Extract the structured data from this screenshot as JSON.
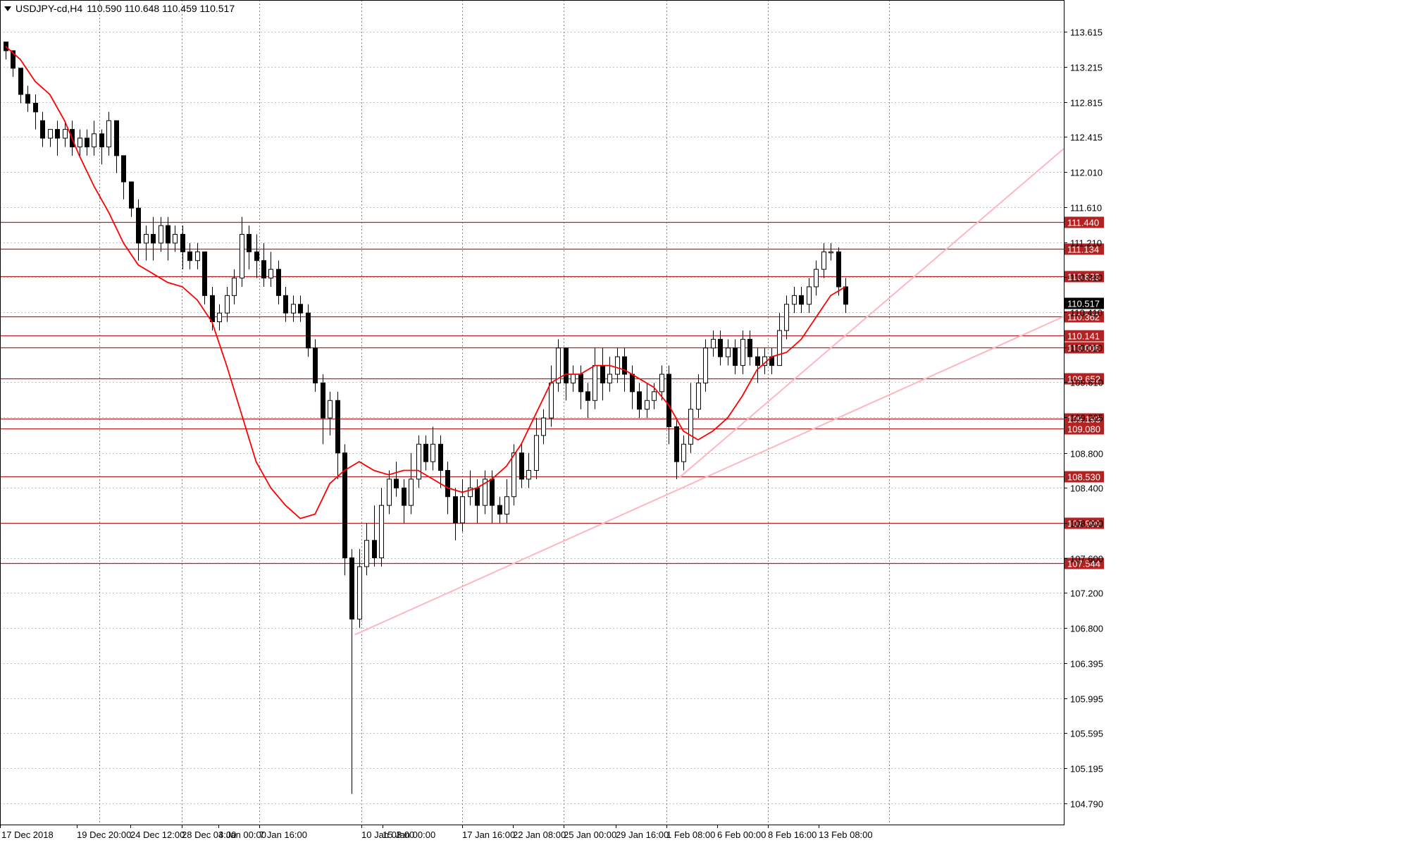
{
  "header": {
    "symbol": "USDJPY-cd,H4",
    "quote": "110.590 110.648 110.459 110.517"
  },
  "colors": {
    "candle_bull": "#ffffff",
    "candle_bear": "#000000",
    "ma_line": "#ff0000",
    "level_line": "#b22222",
    "trend_line": "#ffb6c1",
    "grid": "#c0c0c0",
    "price_tag_bg": "#b22222",
    "current_tag_bg": "#000000"
  },
  "chart_data": {
    "type": "candlestick",
    "title": "USDJPY-cd,H4",
    "ohlc": [
      110.59,
      110.648,
      110.459,
      110.517
    ],
    "grid": true,
    "ylim": [
      104.55,
      113.98
    ],
    "y_ticks": [
      "113.615",
      "113.215",
      "112.815",
      "112.415",
      "112.010",
      "111.610",
      "111.210",
      "110.810",
      "110.410",
      "110.010",
      "109.610",
      "109.205",
      "108.800",
      "108.400",
      "108.000",
      "107.600",
      "107.200",
      "106.800",
      "106.395",
      "105.995",
      "105.595",
      "105.195",
      "104.790"
    ],
    "x_ticks": [
      "17 Dec 2018",
      "19 Dec 20:00",
      "24 Dec 12:00",
      "28 Dec 04:00",
      "3 Jan 00:00",
      "7 Jan 16:00",
      "10 Jan 08:00",
      "15 Jan 00:00",
      "17 Jan 16:00",
      "22 Jan 08:00",
      "25 Jan 00:00",
      "29 Jan 16:00",
      "1 Feb 08:00",
      "6 Feb 00:00",
      "8 Feb 16:00",
      "13 Feb 08:00"
    ],
    "price_levels": [
      111.44,
      111.134,
      110.823,
      110.362,
      110.141,
      110.008,
      109.652,
      109.193,
      109.08,
      108.53,
      107.999,
      107.544
    ],
    "current_price": 110.517,
    "moving_average": [
      113.45,
      113.3,
      113.05,
      112.9,
      112.6,
      112.2,
      111.85,
      111.55,
      111.2,
      110.95,
      110.85,
      110.75,
      110.7,
      110.55,
      110.3,
      109.8,
      109.25,
      108.7,
      108.4,
      108.2,
      108.05,
      108.1,
      108.45,
      108.6,
      108.7,
      108.6,
      108.55,
      108.6,
      108.6,
      108.5,
      108.4,
      108.35,
      108.4,
      108.5,
      108.65,
      108.9,
      109.25,
      109.6,
      109.7,
      109.7,
      109.8,
      109.8,
      109.75,
      109.65,
      109.55,
      109.35,
      109.05,
      108.95,
      109.05,
      109.2,
      109.45,
      109.75,
      109.9,
      109.95,
      110.1,
      110.35,
      110.6,
      110.7
    ],
    "candles": [
      [
        113.5,
        113.4,
        113.5,
        113.3
      ],
      [
        113.4,
        113.2,
        113.4,
        113.1
      ],
      [
        113.2,
        112.9,
        113.2,
        112.8
      ],
      [
        112.9,
        112.8,
        113.0,
        112.7
      ],
      [
        112.8,
        112.7,
        112.9,
        112.5
      ],
      [
        112.6,
        112.4,
        112.7,
        112.3
      ],
      [
        112.4,
        112.5,
        112.5,
        112.3
      ],
      [
        112.5,
        112.4,
        112.6,
        112.2
      ],
      [
        112.4,
        112.5,
        112.6,
        112.3
      ],
      [
        112.5,
        112.3,
        112.6,
        112.2
      ],
      [
        112.3,
        112.4,
        112.5,
        112.2
      ],
      [
        112.4,
        112.3,
        112.5,
        112.2
      ],
      [
        112.3,
        112.45,
        112.6,
        112.2
      ],
      [
        112.45,
        112.3,
        112.5,
        112.1
      ],
      [
        112.3,
        112.6,
        112.7,
        112.2
      ],
      [
        112.6,
        112.2,
        112.6,
        112.0
      ],
      [
        112.2,
        111.9,
        112.2,
        111.7
      ],
      [
        111.9,
        111.6,
        111.9,
        111.5
      ],
      [
        111.6,
        111.2,
        111.7,
        111.0
      ],
      [
        111.2,
        111.3,
        111.4,
        111.0
      ],
      [
        111.3,
        111.2,
        111.5,
        111.0
      ],
      [
        111.2,
        111.4,
        111.5,
        111.1
      ],
      [
        111.4,
        111.2,
        111.5,
        111.0
      ],
      [
        111.2,
        111.3,
        111.4,
        111.1
      ],
      [
        111.3,
        111.1,
        111.4,
        110.9
      ],
      [
        111.1,
        111.0,
        111.2,
        110.9
      ],
      [
        111.0,
        111.1,
        111.2,
        110.9
      ],
      [
        111.1,
        110.6,
        111.1,
        110.5
      ],
      [
        110.6,
        110.3,
        110.7,
        110.2
      ],
      [
        110.3,
        110.4,
        110.5,
        110.2
      ],
      [
        110.4,
        110.6,
        110.7,
        110.3
      ],
      [
        110.6,
        110.8,
        110.9,
        110.5
      ],
      [
        110.8,
        111.3,
        111.5,
        110.7
      ],
      [
        111.3,
        111.1,
        111.4,
        110.9
      ],
      [
        111.1,
        111.0,
        111.3,
        110.8
      ],
      [
        111.0,
        110.8,
        111.2,
        110.7
      ],
      [
        110.8,
        110.9,
        111.1,
        110.7
      ],
      [
        110.9,
        110.6,
        111.0,
        110.5
      ],
      [
        110.6,
        110.4,
        110.7,
        110.3
      ],
      [
        110.4,
        110.5,
        110.6,
        110.3
      ],
      [
        110.5,
        110.4,
        110.6,
        110.3
      ],
      [
        110.4,
        110.0,
        110.5,
        109.9
      ],
      [
        110.0,
        109.6,
        110.1,
        109.5
      ],
      [
        109.6,
        109.2,
        109.7,
        108.9
      ],
      [
        109.2,
        109.4,
        109.5,
        109.0
      ],
      [
        109.4,
        108.8,
        109.5,
        108.5
      ],
      [
        108.8,
        107.6,
        108.9,
        107.4
      ],
      [
        107.6,
        106.9,
        107.7,
        104.9
      ],
      [
        106.9,
        107.5,
        107.7,
        106.8
      ],
      [
        107.5,
        107.8,
        108.0,
        107.4
      ],
      [
        107.8,
        107.6,
        108.2,
        107.5
      ],
      [
        107.6,
        108.2,
        108.4,
        107.5
      ],
      [
        108.2,
        108.5,
        108.6,
        108.1
      ],
      [
        108.5,
        108.4,
        108.7,
        108.3
      ],
      [
        108.4,
        108.2,
        108.5,
        108.0
      ],
      [
        108.2,
        108.5,
        108.8,
        108.1
      ],
      [
        108.5,
        108.9,
        109.0,
        108.4
      ],
      [
        108.9,
        108.7,
        109.0,
        108.6
      ],
      [
        108.7,
        108.9,
        109.1,
        108.6
      ],
      [
        108.9,
        108.6,
        109.0,
        108.4
      ],
      [
        108.6,
        108.3,
        108.7,
        108.1
      ],
      [
        108.3,
        108.0,
        108.4,
        107.8
      ],
      [
        108.0,
        108.3,
        108.5,
        107.9
      ],
      [
        108.3,
        108.4,
        108.6,
        108.2
      ],
      [
        108.4,
        108.2,
        108.5,
        108.0
      ],
      [
        108.2,
        108.5,
        108.6,
        108.1
      ],
      [
        108.5,
        108.2,
        108.6,
        108.0
      ],
      [
        108.2,
        108.1,
        108.3,
        108.0
      ],
      [
        108.1,
        108.3,
        108.5,
        108.0
      ],
      [
        108.3,
        108.8,
        108.9,
        108.2
      ],
      [
        108.8,
        108.5,
        108.9,
        108.4
      ],
      [
        108.5,
        108.6,
        108.8,
        108.4
      ],
      [
        108.6,
        109.0,
        109.2,
        108.5
      ],
      [
        109.0,
        109.2,
        109.3,
        108.9
      ],
      [
        109.2,
        109.6,
        109.8,
        109.1
      ],
      [
        109.6,
        110.0,
        110.1,
        109.5
      ],
      [
        110.0,
        109.6,
        110.0,
        109.4
      ],
      [
        109.6,
        109.7,
        109.8,
        109.5
      ],
      [
        109.7,
        109.5,
        109.8,
        109.3
      ],
      [
        109.5,
        109.4,
        109.6,
        109.2
      ],
      [
        109.4,
        109.8,
        110.0,
        109.3
      ],
      [
        109.8,
        109.6,
        110.0,
        109.4
      ],
      [
        109.6,
        109.7,
        109.9,
        109.5
      ],
      [
        109.7,
        109.9,
        110.0,
        109.6
      ],
      [
        109.9,
        109.7,
        110.0,
        109.5
      ],
      [
        109.7,
        109.5,
        109.8,
        109.3
      ],
      [
        109.5,
        109.3,
        109.6,
        109.2
      ],
      [
        109.3,
        109.4,
        109.6,
        109.2
      ],
      [
        109.4,
        109.5,
        109.6,
        109.3
      ],
      [
        109.5,
        109.7,
        109.8,
        109.4
      ],
      [
        109.7,
        109.1,
        109.8,
        108.9
      ],
      [
        109.1,
        108.7,
        109.2,
        108.5
      ],
      [
        108.7,
        108.9,
        109.0,
        108.6
      ],
      [
        108.9,
        109.3,
        109.6,
        108.8
      ],
      [
        109.3,
        109.6,
        109.7,
        109.2
      ],
      [
        109.6,
        110.0,
        110.1,
        109.5
      ],
      [
        110.0,
        110.1,
        110.2,
        109.9
      ],
      [
        110.1,
        109.9,
        110.2,
        109.8
      ],
      [
        109.9,
        110.0,
        110.1,
        109.8
      ],
      [
        110.0,
        109.8,
        110.1,
        109.7
      ],
      [
        109.8,
        110.1,
        110.2,
        109.7
      ],
      [
        110.1,
        109.9,
        110.2,
        109.8
      ],
      [
        109.9,
        109.8,
        110.0,
        109.6
      ],
      [
        109.8,
        109.9,
        110.0,
        109.7
      ],
      [
        109.9,
        109.8,
        110.0,
        109.7
      ],
      [
        109.8,
        110.2,
        110.4,
        109.8
      ],
      [
        110.2,
        110.5,
        110.6,
        110.1
      ],
      [
        110.5,
        110.6,
        110.7,
        110.4
      ],
      [
        110.6,
        110.5,
        110.7,
        110.4
      ],
      [
        110.5,
        110.7,
        110.8,
        110.4
      ],
      [
        110.7,
        110.9,
        111.0,
        110.6
      ],
      [
        110.9,
        111.1,
        111.2,
        110.8
      ],
      [
        111.1,
        111.1,
        111.2,
        111.0
      ],
      [
        111.1,
        110.7,
        111.15,
        110.6
      ],
      [
        110.7,
        110.5,
        110.8,
        110.4
      ]
    ]
  }
}
